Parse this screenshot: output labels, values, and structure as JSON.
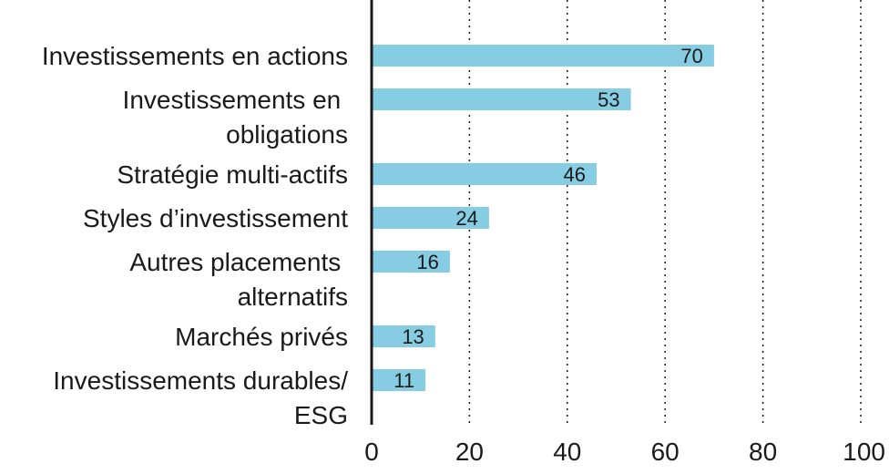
{
  "chart_data": {
    "type": "bar",
    "orientation": "horizontal",
    "title": "",
    "xlabel": "",
    "ylabel": "",
    "xlim": [
      0,
      100
    ],
    "x_ticks": [
      0,
      20,
      40,
      60,
      80,
      100
    ],
    "grid": "vertical dotted",
    "categories": [
      [
        "Investissements en actions"
      ],
      [
        "Investissements en ",
        "obligations"
      ],
      [
        "Stratégie multi-actifs"
      ],
      [
        "Styles d’investissement"
      ],
      [
        "Autres placements ",
        "alternatifs"
      ],
      [
        "Marchés privés"
      ],
      [
        "Investissements durables/",
        "ESG"
      ]
    ],
    "values": [
      70,
      53,
      46,
      24,
      16,
      13,
      11
    ],
    "colors": {
      "bar": "#86cde3",
      "text": "#1a1a1a"
    }
  }
}
